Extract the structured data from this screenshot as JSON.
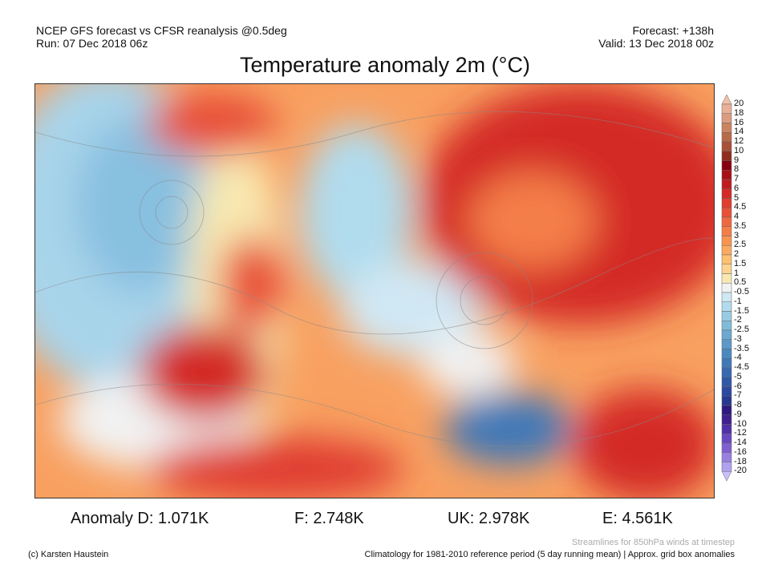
{
  "header": {
    "line1_left": "NCEP GFS forecast vs CFSR reanalysis @0.5deg",
    "line2_left": "Run: 07 Dec 2018 06z",
    "line1_right": "Forecast: +138h",
    "line2_right": "Valid: 13 Dec 2018 00z",
    "title": "Temperature anomaly 2m (°C)"
  },
  "colorbar": {
    "labels": [
      "20",
      "18",
      "16",
      "14",
      "12",
      "10",
      "9",
      "8",
      "7",
      "6",
      "5",
      "4.5",
      "4",
      "3.5",
      "3",
      "2.5",
      "2",
      "1.5",
      "1",
      "0.5",
      "-0.5",
      "-1",
      "-1.5",
      "-2",
      "-2.5",
      "-3",
      "-3.5",
      "-4",
      "-4.5",
      "-5",
      "-6",
      "-7",
      "-8",
      "-9",
      "-10",
      "-12",
      "-14",
      "-16",
      "-18",
      "-20"
    ],
    "colors": [
      "#f0c0a8",
      "#e8b096",
      "#dc9c80",
      "#cc8460",
      "#b86a48",
      "#a85038",
      "#902e20",
      "#880010",
      "#a81018",
      "#c01c20",
      "#d42a28",
      "#e03c30",
      "#e85038",
      "#f06840",
      "#f47e48",
      "#f89450",
      "#fcaa60",
      "#fcc070",
      "#fcd490",
      "#f8e8b0",
      "#f2f2f2",
      "#d0e8f4",
      "#b0dcee",
      "#98cce0",
      "#80bcd8",
      "#6ca8d0",
      "#5c98c8",
      "#4c88c0",
      "#4078b8",
      "#3868b0",
      "#3058a8",
      "#2c48a0",
      "#283890",
      "#301880",
      "#402090",
      "#5030a8",
      "#6848c0",
      "#8060d0",
      "#9880e0",
      "#b0a0f0",
      "#c8c0f8"
    ]
  },
  "anomalies": {
    "d": "Anomaly D: 1.071K",
    "f": "F: 2.748K",
    "uk": "UK: 2.978K",
    "e": "E: 4.561K"
  },
  "footer": {
    "credit": "(c) Karsten Haustein",
    "streamlines": "Streamlines for 850hPa winds at timestep",
    "climatology": "Climatology for 1981-2010 reference period (5 day running mean) | Approx. grid box anomalies"
  }
}
